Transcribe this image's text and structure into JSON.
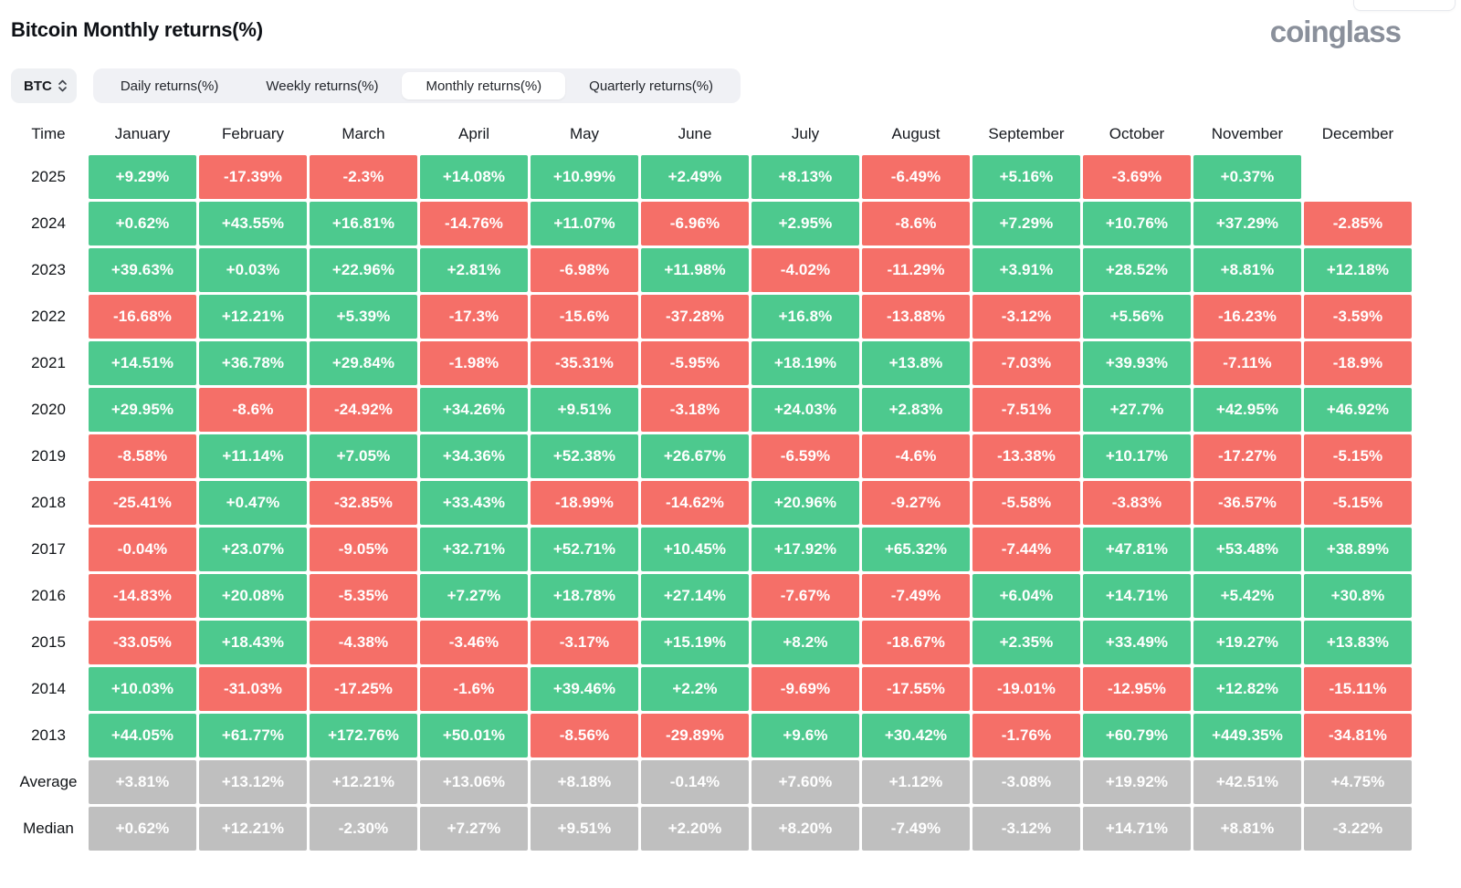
{
  "header": {
    "title": "Bitcoin Monthly returns(%)",
    "logo": "coinglass"
  },
  "controls": {
    "symbol_select": {
      "value": "BTC",
      "icon": "sort-chevrons-icon"
    },
    "tabs": [
      {
        "label": "Daily returns(%)",
        "active": false
      },
      {
        "label": "Weekly returns(%)",
        "active": false
      },
      {
        "label": "Monthly returns(%)",
        "active": true
      },
      {
        "label": "Quarterly returns(%)",
        "active": false
      }
    ]
  },
  "colors": {
    "green": "#4dc98e",
    "red": "#f56f68",
    "gray": "#bfbfbf"
  },
  "table": {
    "time_header": "Time",
    "months": [
      "January",
      "February",
      "March",
      "April",
      "May",
      "June",
      "July",
      "August",
      "September",
      "October",
      "November",
      "December"
    ],
    "rows": [
      {
        "label": "2025",
        "values": [
          "+9.29%",
          "-17.39%",
          "-2.3%",
          "+14.08%",
          "+10.99%",
          "+2.49%",
          "+8.13%",
          "-6.49%",
          "+5.16%",
          "-3.69%",
          "+0.37%",
          ""
        ],
        "colors": [
          "g",
          "r",
          "r",
          "g",
          "g",
          "g",
          "g",
          "r",
          "g",
          "r",
          "g",
          ""
        ]
      },
      {
        "label": "2024",
        "values": [
          "+0.62%",
          "+43.55%",
          "+16.81%",
          "-14.76%",
          "+11.07%",
          "-6.96%",
          "+2.95%",
          "-8.6%",
          "+7.29%",
          "+10.76%",
          "+37.29%",
          "-2.85%"
        ],
        "colors": [
          "g",
          "g",
          "g",
          "r",
          "g",
          "r",
          "g",
          "r",
          "g",
          "g",
          "g",
          "r"
        ]
      },
      {
        "label": "2023",
        "values": [
          "+39.63%",
          "+0.03%",
          "+22.96%",
          "+2.81%",
          "-6.98%",
          "+11.98%",
          "-4.02%",
          "-11.29%",
          "+3.91%",
          "+28.52%",
          "+8.81%",
          "+12.18%"
        ],
        "colors": [
          "g",
          "g",
          "g",
          "g",
          "r",
          "g",
          "r",
          "r",
          "g",
          "g",
          "g",
          "g"
        ]
      },
      {
        "label": "2022",
        "values": [
          "-16.68%",
          "+12.21%",
          "+5.39%",
          "-17.3%",
          "-15.6%",
          "-37.28%",
          "+16.8%",
          "-13.88%",
          "-3.12%",
          "+5.56%",
          "-16.23%",
          "-3.59%"
        ],
        "colors": [
          "r",
          "g",
          "g",
          "r",
          "r",
          "r",
          "g",
          "r",
          "r",
          "g",
          "r",
          "r"
        ]
      },
      {
        "label": "2021",
        "values": [
          "+14.51%",
          "+36.78%",
          "+29.84%",
          "-1.98%",
          "-35.31%",
          "-5.95%",
          "+18.19%",
          "+13.8%",
          "-7.03%",
          "+39.93%",
          "-7.11%",
          "-18.9%"
        ],
        "colors": [
          "g",
          "g",
          "g",
          "r",
          "r",
          "r",
          "g",
          "g",
          "r",
          "g",
          "r",
          "r"
        ]
      },
      {
        "label": "2020",
        "values": [
          "+29.95%",
          "-8.6%",
          "-24.92%",
          "+34.26%",
          "+9.51%",
          "-3.18%",
          "+24.03%",
          "+2.83%",
          "-7.51%",
          "+27.7%",
          "+42.95%",
          "+46.92%"
        ],
        "colors": [
          "g",
          "r",
          "r",
          "g",
          "g",
          "r",
          "g",
          "g",
          "r",
          "g",
          "g",
          "g"
        ]
      },
      {
        "label": "2019",
        "values": [
          "-8.58%",
          "+11.14%",
          "+7.05%",
          "+34.36%",
          "+52.38%",
          "+26.67%",
          "-6.59%",
          "-4.6%",
          "-13.38%",
          "+10.17%",
          "-17.27%",
          "-5.15%"
        ],
        "colors": [
          "r",
          "g",
          "g",
          "g",
          "g",
          "g",
          "r",
          "r",
          "r",
          "g",
          "r",
          "r"
        ]
      },
      {
        "label": "2018",
        "values": [
          "-25.41%",
          "+0.47%",
          "-32.85%",
          "+33.43%",
          "-18.99%",
          "-14.62%",
          "+20.96%",
          "-9.27%",
          "-5.58%",
          "-3.83%",
          "-36.57%",
          "-5.15%"
        ],
        "colors": [
          "r",
          "g",
          "r",
          "g",
          "r",
          "r",
          "g",
          "r",
          "r",
          "r",
          "r",
          "r"
        ]
      },
      {
        "label": "2017",
        "values": [
          "-0.04%",
          "+23.07%",
          "-9.05%",
          "+32.71%",
          "+52.71%",
          "+10.45%",
          "+17.92%",
          "+65.32%",
          "-7.44%",
          "+47.81%",
          "+53.48%",
          "+38.89%"
        ],
        "colors": [
          "r",
          "g",
          "r",
          "g",
          "g",
          "g",
          "g",
          "g",
          "r",
          "g",
          "g",
          "g"
        ]
      },
      {
        "label": "2016",
        "values": [
          "-14.83%",
          "+20.08%",
          "-5.35%",
          "+7.27%",
          "+18.78%",
          "+27.14%",
          "-7.67%",
          "-7.49%",
          "+6.04%",
          "+14.71%",
          "+5.42%",
          "+30.8%"
        ],
        "colors": [
          "r",
          "g",
          "r",
          "g",
          "g",
          "g",
          "r",
          "r",
          "g",
          "g",
          "g",
          "g"
        ]
      },
      {
        "label": "2015",
        "values": [
          "-33.05%",
          "+18.43%",
          "-4.38%",
          "-3.46%",
          "-3.17%",
          "+15.19%",
          "+8.2%",
          "-18.67%",
          "+2.35%",
          "+33.49%",
          "+19.27%",
          "+13.83%"
        ],
        "colors": [
          "r",
          "g",
          "r",
          "r",
          "r",
          "g",
          "g",
          "r",
          "g",
          "g",
          "g",
          "g"
        ]
      },
      {
        "label": "2014",
        "values": [
          "+10.03%",
          "-31.03%",
          "-17.25%",
          "-1.6%",
          "+39.46%",
          "+2.2%",
          "-9.69%",
          "-17.55%",
          "-19.01%",
          "-12.95%",
          "+12.82%",
          "-15.11%"
        ],
        "colors": [
          "g",
          "r",
          "r",
          "r",
          "g",
          "g",
          "r",
          "r",
          "r",
          "r",
          "g",
          "r"
        ]
      },
      {
        "label": "2013",
        "values": [
          "+44.05%",
          "+61.77%",
          "+172.76%",
          "+50.01%",
          "-8.56%",
          "-29.89%",
          "+9.6%",
          "+30.42%",
          "-1.76%",
          "+60.79%",
          "+449.35%",
          "-34.81%"
        ],
        "colors": [
          "g",
          "g",
          "g",
          "g",
          "r",
          "r",
          "g",
          "g",
          "r",
          "g",
          "g",
          "r"
        ]
      },
      {
        "label": "Average",
        "values": [
          "+3.81%",
          "+13.12%",
          "+12.21%",
          "+13.06%",
          "+8.18%",
          "-0.14%",
          "+7.60%",
          "+1.12%",
          "-3.08%",
          "+19.92%",
          "+42.51%",
          "+4.75%"
        ],
        "colors": [
          "x",
          "x",
          "x",
          "x",
          "x",
          "x",
          "x",
          "x",
          "x",
          "x",
          "x",
          "x"
        ]
      },
      {
        "label": "Median",
        "values": [
          "+0.62%",
          "+12.21%",
          "-2.30%",
          "+7.27%",
          "+9.51%",
          "+2.20%",
          "+8.20%",
          "-7.49%",
          "-3.12%",
          "+14.71%",
          "+8.81%",
          "-3.22%"
        ],
        "colors": [
          "x",
          "x",
          "x",
          "x",
          "x",
          "x",
          "x",
          "x",
          "x",
          "x",
          "x",
          "x"
        ]
      }
    ]
  }
}
